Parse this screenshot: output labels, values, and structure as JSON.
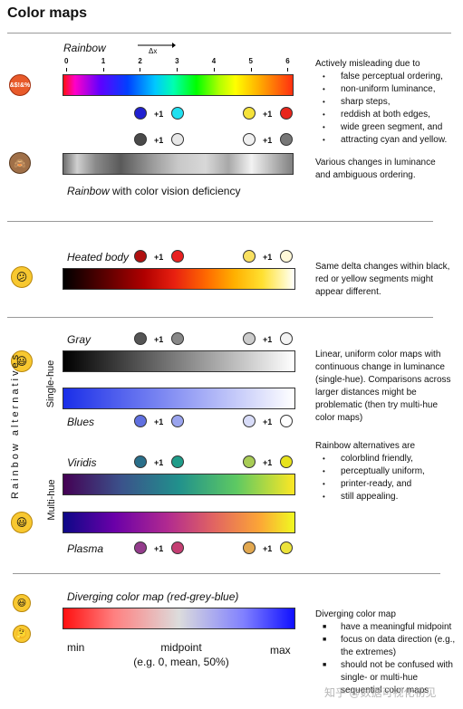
{
  "title": "Color maps",
  "rainbow": {
    "label": "Rainbow",
    "delta": "Δx",
    "ticks": [
      "0",
      "1",
      "2",
      "3",
      "4",
      "5",
      "6"
    ],
    "plus": "+1",
    "cvd_label_em": "Rainbow",
    "cvd_label_rest": "with color vision deficiency",
    "desc_title": "Actively misleading due to",
    "bullets": [
      "false perceptual ordering,",
      "non-uniform luminance,",
      "sharp steps,",
      "reddish at both edges,",
      "wide green segment, and",
      "attracting cyan and yellow."
    ],
    "cvd_desc": "Various changes in luminance and ambiguous ordering.",
    "face1_icon": "angry-face-icon",
    "face1_text": "&$!&%",
    "face2_icon": "see-no-evil-monkey-icon"
  },
  "heated": {
    "label": "Heated body",
    "plus": "+1",
    "desc": "Same delta changes within black, red or yellow segments might appear different.",
    "face_icon": "confused-face-icon"
  },
  "alternatives": {
    "side_label": "Rainbow alternatives",
    "single_hue": "Single-hue",
    "multi_hue": "Multi-hue",
    "gray": "Gray",
    "blues": "Blues",
    "viridis": "Viridis",
    "plasma": "Plasma",
    "plus": "+1",
    "desc1": "Linear, uniform color maps with continuous change in luminance (single-hue). Comparisons across larger distances might be problematic (then try multi-hue color maps)",
    "desc2_title": "Rainbow alternatives are",
    "bullets": [
      "colorblind friendly,",
      "perceptually uniform,",
      "printer-ready, and",
      "still appealing."
    ],
    "face_icon": "smiling-face-icon"
  },
  "diverging": {
    "label": "Diverging color map (red-grey-blue)",
    "min": "min",
    "midpoint": "midpoint",
    "midpoint_note": "(e.g. 0, mean, 50%)",
    "max": "max",
    "desc_title": "Diverging color map",
    "bullets": [
      "have a meaningful midpoint",
      "focus on data direction (e.g., the extremes)",
      "should not be confused with single- or multi-hue sequential color maps"
    ],
    "face1_icon": "smiling-face-icon",
    "face2_icon": "thinking-face-icon"
  },
  "watermark": "知乎 @数据可视化初见",
  "colors": {
    "rainbow_pairs": [
      [
        "#2020d0",
        "#20e0f0"
      ],
      [
        "#f5e23a",
        "#e8251b"
      ]
    ],
    "rainbow_gray_pairs": [
      [
        "#4a4a4a",
        "#e8e8e8"
      ],
      [
        "#f0f0f0",
        "#777777"
      ]
    ],
    "heated_pairs": [
      [
        "#b01010",
        "#e82020"
      ],
      [
        "#f8e060",
        "#fff8d8"
      ]
    ],
    "gray_pairs": [
      [
        "#555555",
        "#888888"
      ],
      [
        "#cccccc",
        "#f4f4f4"
      ]
    ],
    "blues_pairs": [
      [
        "#6070e0",
        "#9aa4ee"
      ],
      [
        "#d8dcf8",
        "#ffffff"
      ]
    ],
    "viridis_pairs": [
      [
        "#2a6f8a",
        "#1f9c89"
      ],
      [
        "#a8cc55",
        "#e7e21c"
      ]
    ],
    "plasma_pairs": [
      [
        "#943c8c",
        "#c43e72"
      ],
      [
        "#e2a850",
        "#ece33a"
      ]
    ]
  }
}
